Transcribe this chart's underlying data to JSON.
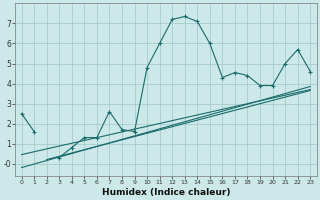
{
  "xlabel": "Humidex (Indice chaleur)",
  "bg_color": "#cce8e8",
  "grid_color": "#aacccc",
  "line_color": "#1a6b6b",
  "main_x": [
    0,
    1,
    2,
    3,
    4,
    5,
    6,
    7,
    8,
    9,
    10,
    11,
    12,
    13,
    14,
    15,
    16,
    17,
    18,
    19,
    20,
    21,
    22,
    23
  ],
  "main_y": [
    2.5,
    1.6,
    null,
    0.3,
    0.8,
    1.3,
    1.3,
    2.6,
    1.7,
    1.6,
    4.8,
    6.0,
    7.2,
    7.35,
    7.1,
    6.0,
    4.3,
    4.55,
    4.4,
    3.9,
    3.9,
    5.0,
    5.7,
    4.6
  ],
  "line1_x": [
    0,
    23
  ],
  "line1_y": [
    0.45,
    3.7
  ],
  "line2_x": [
    0,
    23
  ],
  "line2_y": [
    -0.2,
    3.85
  ],
  "line3_x": [
    2,
    23
  ],
  "line3_y": [
    0.2,
    3.65
  ],
  "xlim": [
    -0.5,
    23.5
  ],
  "ylim": [
    -0.6,
    8.0
  ],
  "yticks": [
    0,
    1,
    2,
    3,
    4,
    5,
    6,
    7
  ],
  "ytick_labels": [
    "-0",
    "1",
    "2",
    "3",
    "4",
    "5",
    "6",
    "7"
  ],
  "xtick_labels": [
    "0",
    "1",
    "2",
    "3",
    "4",
    "5",
    "6",
    "7",
    "8",
    "9",
    "10",
    "11",
    "12",
    "13",
    "14",
    "15",
    "16",
    "17",
    "18",
    "19",
    "20",
    "21",
    "22",
    "23"
  ]
}
